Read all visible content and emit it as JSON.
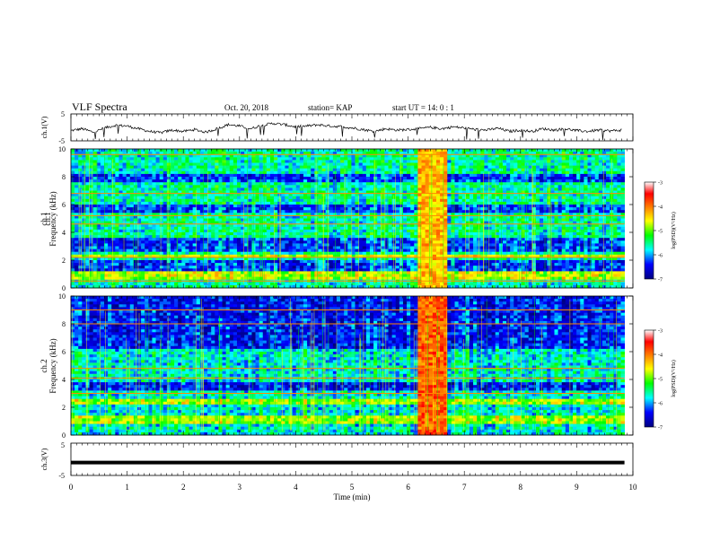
{
  "header": {
    "title": "VLF Spectra",
    "date": "Oct. 20, 2018",
    "station": "station= KAP",
    "start": "start  UT =   14: 0  : 1"
  },
  "colorbar": {
    "label": "log(PSD)(V²/Hz)",
    "ticks": [
      "-3",
      "-4",
      "-5",
      "-6",
      "-7"
    ],
    "colors": [
      "#ffffff",
      "#ff0000",
      "#ffff00",
      "#00ff00",
      "#00ffff",
      "#0000ff",
      "#000080"
    ]
  },
  "chart_data": [
    {
      "type": "line",
      "name": "ch.1 waveform",
      "ylabel": "ch.1(V)",
      "ylim": [
        -5,
        5
      ],
      "yticks": [
        "5",
        "-5"
      ],
      "xlim": [
        0,
        10
      ],
      "x_unit": "min",
      "x": [
        0,
        0.2,
        0.4,
        0.6,
        0.8,
        1.0,
        1.2,
        1.4,
        1.6,
        1.8,
        2.0,
        2.2,
        2.4,
        2.6,
        2.8,
        3.0,
        3.2,
        3.4,
        3.6,
        3.8,
        4.0,
        4.2,
        4.4,
        4.6,
        4.8,
        5.0,
        5.2,
        5.4,
        5.6,
        5.8,
        6.0,
        6.2,
        6.4,
        6.6,
        6.8,
        7.0,
        7.2,
        7.4,
        7.6,
        7.8,
        8.0,
        8.2,
        8.4,
        8.6,
        8.8,
        9.0,
        9.2,
        9.4,
        9.6,
        9.8
      ],
      "y": [
        -1.2,
        -0.5,
        -1.8,
        -0.2,
        0.8,
        0.5,
        -0.5,
        -1.5,
        -2.0,
        -1.0,
        -1.5,
        -0.8,
        -1.8,
        -0.5,
        1.0,
        0.5,
        -0.5,
        0.8,
        1.5,
        1.0,
        0.2,
        0.5,
        1.0,
        0.5,
        0.3,
        -0.2,
        -0.8,
        -1.5,
        -0.5,
        -1.0,
        -0.8,
        -0.5,
        0.0,
        -0.5,
        0.2,
        -0.2,
        -0.8,
        -1.0,
        -0.3,
        -1.5,
        -1.0,
        -1.5,
        -0.5,
        -1.0,
        -0.5,
        -1.2,
        -1.5,
        -1.0,
        -1.3,
        -1.0
      ]
    },
    {
      "type": "heatmap",
      "name": "ch.1 spectrogram",
      "ylabel": "ch.1\nFrequency (kHz)",
      "ylim": [
        0,
        10
      ],
      "yticks": [
        "0",
        "2",
        "4",
        "6",
        "8",
        "10"
      ],
      "xlim": [
        0,
        10
      ],
      "value_range": [
        -7,
        -3
      ],
      "background_log_psd": -5.6,
      "quiet_bands_khz": [
        [
          1.3,
          2.0
        ],
        [
          2.6,
          3.5
        ],
        [
          5.5,
          6.0
        ],
        [
          7.6,
          8.1
        ]
      ],
      "strong_bands_khz": [
        [
          0.6,
          1.2
        ],
        [
          2.1,
          2.3
        ]
      ],
      "line_frequencies_khz": [
        0.5,
        2.2,
        4.6,
        5.2,
        6.8,
        9.6
      ],
      "burst_time_min": [
        6.15,
        6.7
      ],
      "burst_log_psd": -4.3
    },
    {
      "type": "heatmap",
      "name": "ch.2 spectrogram",
      "ylabel": "ch.2\nFrequency (kHz)",
      "ylim": [
        0,
        10
      ],
      "yticks": [
        "0",
        "2",
        "4",
        "6",
        "8",
        "10"
      ],
      "xlim": [
        0,
        10
      ],
      "value_range": [
        -7,
        -3
      ],
      "background_log_psd": -5.7,
      "quiet_bands_khz": [
        [
          3.1,
          3.7
        ],
        [
          6.3,
          9.9
        ]
      ],
      "strong_bands_khz": [
        [
          0.8,
          1.4
        ],
        [
          2.3,
          2.5
        ]
      ],
      "line_frequencies_khz": [
        3.0,
        4.1,
        4.8,
        8.0,
        9.0
      ],
      "burst_time_min": [
        6.15,
        6.7
      ],
      "burst_log_psd": -3.9
    },
    {
      "type": "line",
      "name": "ch.3 waveform",
      "ylabel": "ch.3(V)",
      "ylim": [
        -5,
        5
      ],
      "yticks": [
        "5",
        "-5"
      ],
      "xlim": [
        0,
        10
      ],
      "x": [
        0,
        9.85
      ],
      "y": [
        -1.0,
        -1.0
      ]
    }
  ],
  "x_axis": {
    "label": "Time  (min)",
    "ticks": [
      "0",
      "1",
      "2",
      "3",
      "4",
      "5",
      "6",
      "7",
      "8",
      "9",
      "10"
    ]
  }
}
